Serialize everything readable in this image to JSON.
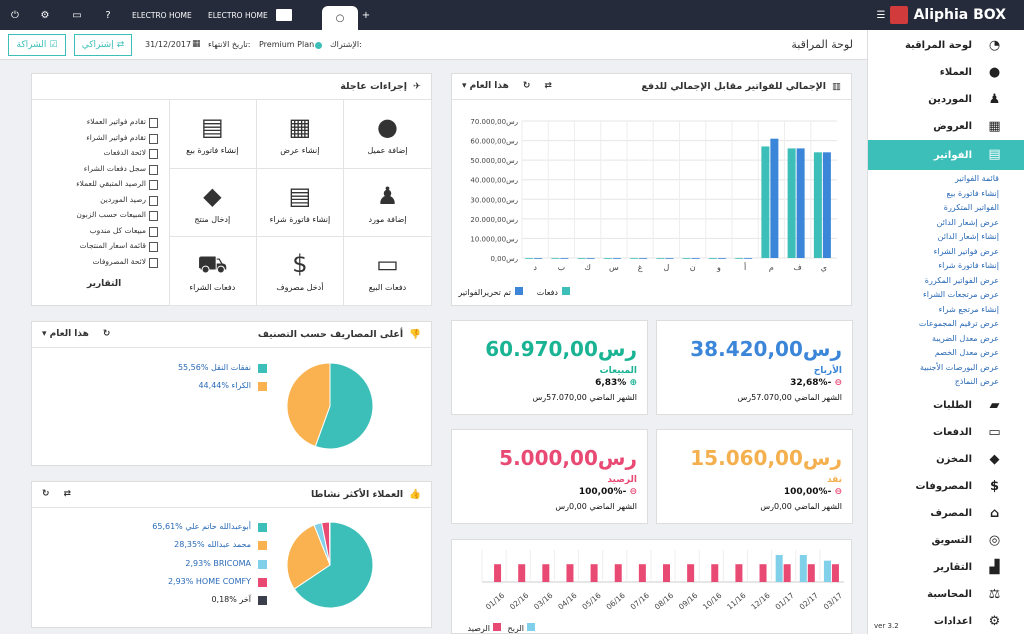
{
  "app": {
    "brand": "Aliphia BOX"
  },
  "topbar": {
    "tab1": "ELECTRO HOME",
    "tab2": "ELECTRO HOME"
  },
  "subbar": {
    "title": "لوحة المراقبة",
    "subscription_label": "الإشتراك:",
    "plan": "Premium Plan",
    "expiry_label": "تاريخ الانتهاء:",
    "expiry": "31/12/2017",
    "my_subscription": "إشتراكي",
    "partnership": "الشراكة"
  },
  "sidebar": {
    "items": [
      {
        "label": "لوحة المراقبة",
        "icon": "dashboard-icon"
      },
      {
        "label": "العملاء",
        "icon": "user-icon"
      },
      {
        "label": "الموردين",
        "icon": "supplier-icon"
      },
      {
        "label": "العروض",
        "icon": "calculator-icon"
      },
      {
        "label": "الفواتير",
        "icon": "invoice-icon"
      }
    ],
    "invoice_sub": [
      "قائمة الفواتير",
      "إنشاء فاتورة بيع",
      "الفواتير المتكررة",
      "عرض إشعار الدائن",
      "إنشاء إشعار الدائن",
      "عرض فواتير الشراء",
      "إنشاء فاتورة شراء",
      "عرض الفواتير المكررة",
      "عرض مرتجعات الشراء",
      "إنشاء مرتجع شراء",
      "عرض ترقيم المجموعات",
      "عرض معدل الضريبة",
      "عرض معدل الخصم",
      "عرض البورصات الأجنبية",
      "عرض النماذج"
    ],
    "items2": [
      {
        "label": "الطلبات",
        "icon": "briefcase-icon"
      },
      {
        "label": "الدفعات",
        "icon": "card-icon"
      },
      {
        "label": "المخزن",
        "icon": "box-icon"
      },
      {
        "label": "المصروفات",
        "icon": "dollar-icon"
      },
      {
        "label": "المصرف",
        "icon": "bank-icon"
      },
      {
        "label": "التسويق",
        "icon": "target-icon"
      },
      {
        "label": "التقارير",
        "icon": "bars-icon"
      },
      {
        "label": "المحاسبة",
        "icon": "scale-icon"
      },
      {
        "label": "اعدادات",
        "icon": "gear-icon"
      }
    ],
    "version": "ver 3.2"
  },
  "quick": {
    "title": "إجراءات عاجلة",
    "actions": [
      {
        "label": "إضافة عميل",
        "icon": "user-icon"
      },
      {
        "label": "إنشاء عرض",
        "icon": "calculator-icon"
      },
      {
        "label": "إنشاء فاتورة بيع",
        "icon": "document-icon"
      },
      {
        "label": "إضافة مورد",
        "icon": "supplier-icon"
      },
      {
        "label": "إنشاء فاتورة شراء",
        "icon": "document-icon"
      },
      {
        "label": "إدخال منتج",
        "icon": "box-icon"
      },
      {
        "label": "دفعات البيع",
        "icon": "card-icon"
      },
      {
        "label": "أدخل مصروف",
        "icon": "dollar-icon"
      },
      {
        "label": "دفعات الشراء",
        "icon": "trolley-icon"
      }
    ],
    "reports": [
      "تقادم فواتير العملاء",
      "تقادم فواتير الشراء",
      "لائحة الدفعات",
      "سجل دفعات الشراء",
      "الرصيد المتبقي للعملاء",
      "رصيد الموردين",
      "المبيعات حسب الزبون",
      "مبيعات كل مندوب",
      "قائمة اسعار المنتجات",
      "لائحة المصروفات"
    ],
    "reports_title": "التقارير"
  },
  "invoice_chart": {
    "title": "الإجمالي للفواتير مقابل الإجمالي للدفع",
    "period": "هذا العام",
    "legend_paid": "دفعات",
    "legend_invoiced": "تم تحريرالفواتير",
    "colors": {
      "paid": "#3bbfb8",
      "invoiced": "#3b86d8"
    }
  },
  "chart_data": [
    {
      "type": "bar",
      "categories": [
        "ي",
        "ف",
        "م",
        "أ",
        "و",
        "ن",
        "ل",
        "غ",
        "س",
        "ك",
        "ب",
        "د"
      ],
      "series": [
        {
          "name": "دفعات",
          "values": [
            54000,
            56000,
            57000,
            0,
            0,
            0,
            0,
            0,
            0,
            0,
            0,
            0
          ]
        },
        {
          "name": "تم تحريرالفواتير",
          "values": [
            54000,
            56000,
            60970,
            0,
            0,
            0,
            0,
            0,
            0,
            0,
            0,
            0
          ]
        }
      ],
      "yticks": [
        "رس0,00",
        "رس10.000,00",
        "رس20.000,00",
        "رس30.000,00",
        "رس40.000,00",
        "رس50.000,00",
        "رس60.000,00",
        "رس70.000,00"
      ],
      "ylim": [
        0,
        70000
      ]
    },
    {
      "type": "pie",
      "labels": [
        "نفقات النقل",
        "الكراء"
      ],
      "values": [
        55.56,
        44.44
      ],
      "percent_labels": [
        "55,56%",
        "44,44%"
      ],
      "colors": [
        "#3bbfb8",
        "#f9b24f"
      ]
    },
    {
      "type": "pie",
      "labels": [
        "أبوعبدالله حاتم علي",
        "محمد عبدالله",
        "BRICOMA",
        "HOME COMFY",
        "آخر"
      ],
      "values": [
        65.61,
        28.35,
        2.93,
        2.93,
        0.18
      ],
      "percent_labels": [
        "65,61%",
        "28,35%",
        "2,93%",
        "2,93%",
        "0,18%"
      ],
      "colors": [
        "#3bbfb8",
        "#f9b24f",
        "#7fd0e8",
        "#e84a74",
        "#3a3f4b"
      ]
    },
    {
      "type": "bar",
      "categories": [
        "01/16",
        "02/16",
        "03/16",
        "04/16",
        "05/16",
        "06/16",
        "07/16",
        "08/16",
        "09/16",
        "10/16",
        "11/16",
        "12/16",
        "01/17",
        "02/17",
        "03/17"
      ],
      "series": [
        {
          "name": "الربح",
          "values": [
            0,
            0,
            0,
            0,
            0,
            0,
            0,
            0,
            0,
            0,
            0,
            0,
            38000,
            38000,
            30000
          ]
        },
        {
          "name": "الرصيد",
          "values": [
            25000,
            25000,
            25000,
            25000,
            25000,
            25000,
            25000,
            25000,
            25000,
            25000,
            25000,
            25000,
            25000,
            25000,
            25000
          ]
        }
      ],
      "colors": [
        "#7fd0e8",
        "#e84a74"
      ]
    }
  ],
  "expenses": {
    "title": "أعلى المصاريف حسب التصنيف",
    "period": "هذا العام"
  },
  "customers": {
    "title": "العملاء الأكثر نشاطا"
  },
  "kpis": [
    {
      "value": "38.420,00رس",
      "label": "الأرباح",
      "pct": "32,68%-",
      "prev": "الشهر الماضي 57.070,00رس",
      "color": "#3b86d8"
    },
    {
      "value": "60.970,00رس",
      "label": "المبيعات",
      "pct": "6,83%",
      "prev": "الشهر الماضي 57.070,00رس",
      "color": "#1ab394"
    },
    {
      "value": "15.060,00رس",
      "label": "نقد",
      "pct": "100,00%-",
      "prev": "الشهر الماضي 0,00رس",
      "color": "#f4b04f"
    },
    {
      "value": "5.000,00رس",
      "label": "الرصيد",
      "pct": "100,00%-",
      "prev": "الشهر الماضي 0,00رس",
      "color": "#e84a74"
    }
  ],
  "monthly_legend": {
    "profit": "الربح",
    "balance": "الرصيد"
  }
}
